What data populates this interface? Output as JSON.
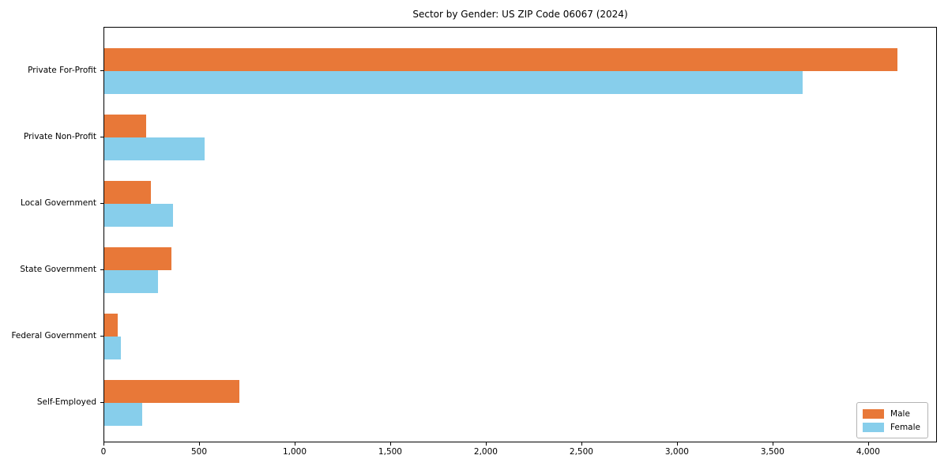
{
  "title": "Sector by Gender: US ZIP Code 06067 (2024)",
  "colors": {
    "male": "#e87838",
    "female": "#87ceeb",
    "spine": "#000000",
    "legend_border": "#b4b4b4",
    "background": "#ffffff"
  },
  "chart_data": {
    "type": "bar",
    "orientation": "horizontal",
    "title": "Sector by Gender: US ZIP Code 06067 (2024)",
    "categories": [
      "Private For-Profit",
      "Private Non-Profit",
      "Local Government",
      "State Government",
      "Federal Government",
      "Self-Employed"
    ],
    "series": [
      {
        "name": "Male",
        "color": "#e87838",
        "values": [
          4150,
          220,
          245,
          350,
          70,
          705
        ]
      },
      {
        "name": "Female",
        "color": "#87ceeb",
        "values": [
          3655,
          525,
          360,
          280,
          85,
          200
        ]
      }
    ],
    "xlabel": "",
    "ylabel": "",
    "xlim": [
      0,
      4360
    ],
    "xticks": [
      0,
      500,
      1000,
      1500,
      2000,
      2500,
      3000,
      3500,
      4000
    ],
    "xtick_labels": [
      "0",
      "500",
      "1,000",
      "1,500",
      "2,000",
      "2,500",
      "3,000",
      "3,500",
      "4,000"
    ],
    "grid": false,
    "legend": {
      "position": "lower right",
      "entries": [
        {
          "label": "Male",
          "color": "#e87838"
        },
        {
          "label": "Female",
          "color": "#87ceeb"
        }
      ]
    }
  }
}
